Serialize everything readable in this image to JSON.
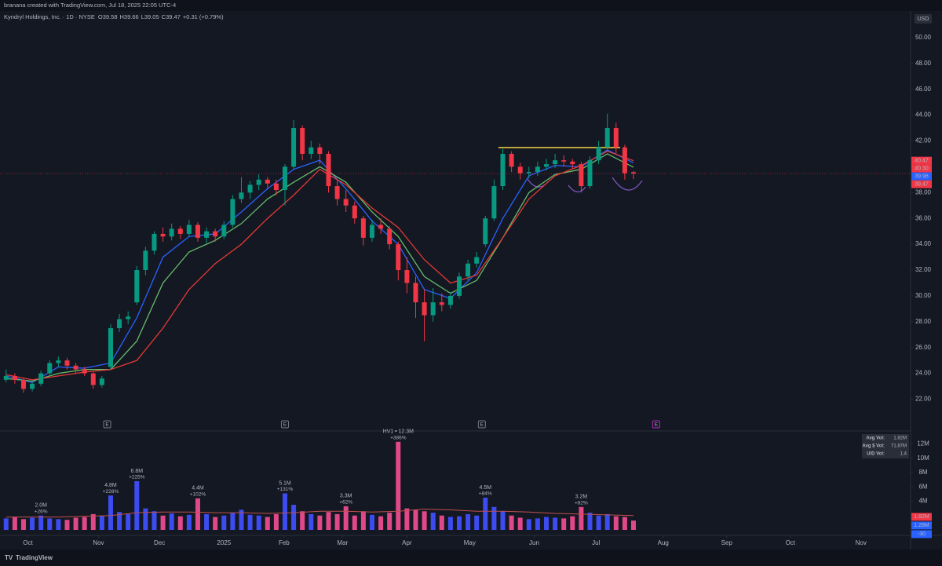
{
  "header": {
    "attribution": "branana created with TradingView.com, Jul 18, 2025 22:05 UTC-4",
    "symbol": "Kyndryl Holdings, Inc. · 1D · NYSE",
    "ohlc": [
      {
        "key": "O",
        "value": 39.58
      },
      {
        "key": "H",
        "value": 39.66
      },
      {
        "key": "L",
        "value": 39.05
      },
      {
        "key": "C",
        "value": 39.47
      }
    ],
    "change": "+0.31 (+0.79%)",
    "currency": "USD"
  },
  "footer": {
    "brand": "TradingView"
  },
  "stats": [
    {
      "label": "Avg Vol:",
      "value": "1.82M"
    },
    {
      "label": "Avg $ Vol:",
      "value": "71.87M"
    },
    {
      "label": "U/D Vol:",
      "value": "1.4"
    }
  ],
  "chart_data": [
    {
      "type": "candlestick",
      "up_color": "#089981",
      "down_color": "#f23645",
      "xlim": [
        -0.7,
        103.8
      ],
      "ylim": [
        19.6,
        52
      ],
      "yticks": [
        {
          "value": 22,
          "label": "22.00"
        },
        {
          "value": 24,
          "label": "24.00"
        },
        {
          "value": 26,
          "label": "26.00"
        },
        {
          "value": 28,
          "label": "28.00"
        },
        {
          "value": 30,
          "label": "30.00"
        },
        {
          "value": 32,
          "label": "32.00"
        },
        {
          "value": 34,
          "label": "34.00"
        },
        {
          "value": 36,
          "label": "36.00"
        },
        {
          "value": 38,
          "label": "38.00"
        },
        {
          "value": 40,
          "label": "40.00"
        },
        {
          "value": 42,
          "label": "42.00"
        },
        {
          "value": 44,
          "label": "44.00"
        },
        {
          "value": 46,
          "label": "46.00"
        },
        {
          "value": 48,
          "label": "48.00"
        },
        {
          "value": 50,
          "label": "50.00"
        }
      ],
      "ohlc": [
        [
          23.5,
          24.3,
          23.3,
          23.8
        ],
        [
          23.8,
          24.0,
          23.2,
          23.5
        ],
        [
          23.5,
          23.6,
          22.5,
          22.8
        ],
        [
          22.8,
          23.4,
          22.6,
          23.2
        ],
        [
          23.2,
          24.2,
          23.0,
          24.0
        ],
        [
          24.0,
          25.0,
          23.8,
          24.8
        ],
        [
          24.8,
          25.3,
          24.5,
          25.0
        ],
        [
          25.0,
          25.2,
          24.3,
          24.6
        ],
        [
          24.6,
          24.8,
          24.0,
          24.3
        ],
        [
          24.3,
          24.5,
          23.8,
          24.0
        ],
        [
          24.0,
          24.1,
          22.8,
          23.1
        ],
        [
          23.1,
          23.8,
          22.9,
          23.6
        ],
        [
          24.5,
          27.8,
          24.3,
          27.5
        ],
        [
          27.5,
          28.6,
          27.2,
          28.2
        ],
        [
          28.2,
          28.8,
          27.8,
          28.4
        ],
        [
          29.5,
          32.3,
          29.3,
          32.0
        ],
        [
          32.0,
          33.8,
          31.6,
          33.5
        ],
        [
          33.5,
          35.0,
          33.2,
          34.8
        ],
        [
          34.8,
          35.3,
          34.2,
          34.6
        ],
        [
          34.6,
          35.6,
          34.3,
          35.2
        ],
        [
          35.2,
          35.4,
          34.4,
          34.8
        ],
        [
          34.8,
          35.9,
          34.6,
          35.5
        ],
        [
          35.5,
          35.7,
          34.2,
          34.5
        ],
        [
          34.5,
          35.3,
          34.1,
          35.0
        ],
        [
          35.0,
          35.2,
          34.2,
          34.6
        ],
        [
          34.6,
          35.8,
          34.4,
          35.5
        ],
        [
          35.5,
          37.8,
          35.3,
          37.5
        ],
        [
          37.5,
          39.2,
          37.2,
          38.0
        ],
        [
          38.0,
          38.9,
          37.5,
          38.6
        ],
        [
          38.6,
          39.4,
          38.2,
          39.0
        ],
        [
          39.0,
          39.2,
          38.3,
          38.7
        ],
        [
          38.7,
          39.0,
          37.8,
          38.2
        ],
        [
          38.2,
          40.2,
          37.0,
          40.0
        ],
        [
          40.0,
          43.6,
          39.8,
          43.0
        ],
        [
          43.0,
          43.2,
          40.5,
          41.0
        ],
        [
          41.0,
          42.0,
          40.6,
          41.5
        ],
        [
          41.5,
          41.8,
          40.2,
          41.0
        ],
        [
          41.0,
          41.2,
          38.0,
          38.5
        ],
        [
          38.5,
          39.0,
          37.0,
          37.5
        ],
        [
          37.5,
          38.2,
          36.5,
          37.0
        ],
        [
          37.0,
          37.3,
          35.6,
          36.0
        ],
        [
          36.0,
          36.2,
          33.9,
          34.5
        ],
        [
          34.5,
          35.9,
          34.2,
          35.5
        ],
        [
          35.5,
          36.0,
          34.8,
          35.2
        ],
        [
          35.2,
          35.4,
          33.6,
          34.0
        ],
        [
          34.0,
          34.2,
          31.2,
          32.0
        ],
        [
          32.0,
          33.0,
          30.2,
          31.0
        ],
        [
          31.0,
          31.5,
          28.3,
          29.5
        ],
        [
          29.5,
          30.5,
          26.5,
          28.5
        ],
        [
          28.5,
          30.6,
          28.0,
          29.5
        ],
        [
          29.5,
          30.2,
          28.8,
          29.3
        ],
        [
          29.3,
          30.3,
          29.0,
          30.0
        ],
        [
          30.0,
          31.8,
          29.8,
          31.5
        ],
        [
          31.5,
          32.8,
          31.2,
          32.5
        ],
        [
          32.5,
          33.4,
          32.2,
          33.0
        ],
        [
          34.0,
          36.2,
          33.8,
          36.0
        ],
        [
          36.0,
          39.0,
          35.8,
          38.5
        ],
        [
          38.5,
          41.4,
          38.2,
          41.0
        ],
        [
          41.0,
          41.2,
          39.6,
          40.0
        ],
        [
          40.0,
          40.3,
          39.0,
          39.5
        ],
        [
          39.5,
          40.0,
          39.1,
          39.6
        ],
        [
          39.6,
          40.4,
          39.3,
          40.0
        ],
        [
          40.0,
          40.6,
          39.7,
          40.2
        ],
        [
          40.2,
          41.0,
          39.9,
          40.5
        ],
        [
          40.5,
          40.9,
          40.0,
          40.4
        ],
        [
          40.4,
          40.6,
          39.8,
          40.2
        ],
        [
          40.2,
          40.4,
          38.0,
          38.5
        ],
        [
          38.5,
          40.8,
          38.3,
          40.5
        ],
        [
          40.5,
          42.0,
          40.2,
          41.5
        ],
        [
          41.5,
          44.1,
          41.3,
          43.0
        ],
        [
          43.0,
          43.4,
          41.0,
          41.5
        ],
        [
          41.5,
          41.7,
          39.0,
          39.5
        ],
        [
          39.58,
          39.66,
          39.05,
          39.47
        ]
      ],
      "series": [
        {
          "color": "#2962ff",
          "x": [
            0,
            3,
            6,
            9,
            12,
            15,
            18,
            21,
            24,
            27,
            30,
            33,
            36,
            39,
            42,
            45,
            48,
            51,
            54,
            57,
            60,
            63,
            66,
            69,
            72
          ],
          "values": [
            23.8,
            23.3,
            24.5,
            24.4,
            24.8,
            28.3,
            33.0,
            34.6,
            34.8,
            36.5,
            38.3,
            39.8,
            40.5,
            38.3,
            35.8,
            34.0,
            30.5,
            29.8,
            31.8,
            36.0,
            39.3,
            40.1,
            40.0,
            41.3,
            40.3
          ]
        },
        {
          "color": "#66bb6a",
          "x": [
            0,
            3,
            6,
            9,
            12,
            15,
            18,
            21,
            24,
            27,
            30,
            33,
            36,
            39,
            42,
            45,
            48,
            51,
            54,
            57,
            60,
            63,
            66,
            69,
            72
          ],
          "values": [
            23.6,
            23.4,
            24.0,
            24.3,
            24.3,
            26.5,
            31.0,
            33.4,
            34.3,
            35.6,
            37.5,
            38.8,
            40.0,
            38.8,
            36.5,
            34.6,
            31.5,
            30.2,
            31.2,
            34.5,
            38.0,
            39.4,
            39.8,
            41.0,
            39.96
          ]
        },
        {
          "color": "#e53935",
          "x": [
            0,
            3,
            6,
            9,
            12,
            15,
            18,
            21,
            24,
            27,
            30,
            33,
            36,
            39,
            42,
            45,
            48,
            51,
            54,
            57,
            60,
            63,
            66,
            69,
            72
          ],
          "values": [
            23.9,
            23.5,
            23.8,
            24.1,
            24.3,
            25.0,
            27.5,
            30.5,
            32.5,
            34.0,
            36.0,
            37.8,
            39.8,
            38.6,
            36.8,
            35.3,
            32.8,
            31.0,
            31.6,
            34.5,
            37.5,
            39.3,
            40.1,
            41.2,
            40.47
          ]
        }
      ],
      "price_labels": [
        {
          "value": 40.47,
          "label": "40.47",
          "color": "#f23645"
        },
        {
          "value": 40.3,
          "label": "40.30",
          "color": "#f23645"
        },
        {
          "value": 39.96,
          "label": "39.96",
          "color": "#2962ff"
        },
        {
          "value": 39.47,
          "label": "39.47",
          "color": "#f23645"
        }
      ],
      "events": [
        {
          "label": "E",
          "x": 11.6,
          "color": "#787b86"
        },
        {
          "label": "E",
          "x": 32,
          "color": "#787b86"
        },
        {
          "label": "E",
          "x": 54.6,
          "color": "#787b86"
        },
        {
          "label": "E",
          "x": 74.6,
          "color": "#b22cc8"
        }
      ]
    },
    {
      "type": "volume",
      "up_color": "#3d4cf0",
      "down_color": "#e0488a",
      "label_color": "#f7a600",
      "change_color": "#4a5cff",
      "ma_color": "#c0504d",
      "xlim": [
        -0.7,
        103.8
      ],
      "ylim": [
        0,
        13.7
      ],
      "yticks": [
        {
          "value": 4,
          "label": "4M"
        },
        {
          "value": 6,
          "label": "6M"
        },
        {
          "value": 8,
          "label": "8M"
        },
        {
          "value": 10,
          "label": "10M"
        },
        {
          "value": 12,
          "label": "12M"
        }
      ],
      "xticks": [
        {
          "value": 2.5,
          "label": "Oct"
        },
        {
          "value": 10.6,
          "label": "Nov"
        },
        {
          "value": 17.6,
          "label": "Dec"
        },
        {
          "value": 25.0,
          "label": "2025"
        },
        {
          "value": 31.9,
          "label": "Feb"
        },
        {
          "value": 38.6,
          "label": "Mar"
        },
        {
          "value": 46.0,
          "label": "Apr"
        },
        {
          "value": 53.2,
          "label": "May"
        },
        {
          "value": 60.6,
          "label": "Jun"
        },
        {
          "value": 67.7,
          "label": "Jul"
        },
        {
          "value": 75.4,
          "label": "Aug"
        },
        {
          "value": 82.7,
          "label": "Sep"
        },
        {
          "value": 90.0,
          "label": "Oct"
        },
        {
          "value": 98.1,
          "label": "Nov"
        }
      ],
      "values": [
        1.6,
        1.8,
        1.5,
        1.7,
        2.0,
        1.6,
        1.5,
        1.4,
        1.7,
        1.8,
        2.2,
        2.0,
        4.8,
        2.5,
        2.2,
        6.8,
        3.0,
        2.6,
        2.0,
        2.3,
        1.9,
        2.1,
        4.4,
        2.2,
        1.8,
        2.0,
        2.4,
        2.8,
        2.1,
        2.0,
        1.8,
        2.2,
        5.1,
        3.5,
        2.6,
        2.2,
        2.0,
        2.5,
        2.2,
        3.3,
        2.0,
        2.6,
        2.1,
        1.9,
        2.4,
        12.3,
        3.0,
        2.8,
        2.6,
        2.4,
        2.0,
        1.8,
        1.9,
        2.2,
        2.0,
        4.5,
        3.2,
        2.6,
        2.0,
        1.7,
        1.5,
        1.6,
        1.8,
        1.7,
        1.6,
        1.9,
        3.2,
        2.4,
        2.0,
        2.2,
        1.9,
        1.8,
        1.3
      ],
      "value_labels": [
        null,
        null,
        null,
        null,
        "2.0M",
        null,
        null,
        null,
        null,
        null,
        null,
        null,
        "4.8M",
        null,
        null,
        "6.8M",
        null,
        null,
        null,
        null,
        null,
        null,
        "4.4M",
        null,
        null,
        null,
        null,
        null,
        null,
        null,
        null,
        null,
        "5.1M",
        null,
        null,
        null,
        null,
        null,
        null,
        "3.3M",
        null,
        null,
        null,
        null,
        null,
        "HV1 • 12.3M",
        null,
        null,
        null,
        null,
        null,
        null,
        null,
        null,
        null,
        "4.5M",
        null,
        null,
        null,
        null,
        null,
        null,
        null,
        null,
        null,
        null,
        "3.2M",
        null,
        null,
        null,
        null,
        null,
        null
      ],
      "change_labels": [
        null,
        null,
        null,
        null,
        "+26%",
        null,
        null,
        null,
        null,
        null,
        null,
        null,
        "+228%",
        null,
        null,
        "+225%",
        null,
        null,
        null,
        null,
        null,
        null,
        "+102%",
        null,
        null,
        null,
        null,
        null,
        null,
        null,
        null,
        null,
        "+131%",
        null,
        null,
        null,
        null,
        null,
        null,
        "+62%",
        null,
        null,
        null,
        null,
        null,
        "+386%",
        null,
        null,
        null,
        null,
        null,
        null,
        null,
        null,
        null,
        "+84%",
        null,
        null,
        null,
        null,
        null,
        null,
        null,
        null,
        null,
        null,
        "+82%",
        null,
        null,
        null,
        null,
        null,
        null
      ],
      "ma": {
        "x": [
          0,
          3,
          6,
          9,
          12,
          15,
          18,
          21,
          24,
          27,
          30,
          33,
          36,
          39,
          42,
          45,
          48,
          51,
          54,
          57,
          60,
          63,
          66,
          69,
          72
        ],
        "values": [
          1.8,
          1.8,
          1.8,
          1.9,
          2.0,
          2.4,
          2.5,
          2.5,
          2.4,
          2.4,
          2.3,
          2.4,
          2.6,
          2.6,
          2.5,
          2.6,
          2.9,
          2.8,
          2.6,
          2.6,
          2.5,
          2.3,
          2.2,
          2.1,
          2.0
        ]
      },
      "side_labels": [
        {
          "label": "1.82M",
          "value": 1.82,
          "color": "#f23645"
        },
        {
          "label": "1.28M",
          "value": 1.28,
          "color": "#2962ff"
        },
        {
          "label": "-30",
          "color": "#2962ff"
        }
      ]
    }
  ]
}
